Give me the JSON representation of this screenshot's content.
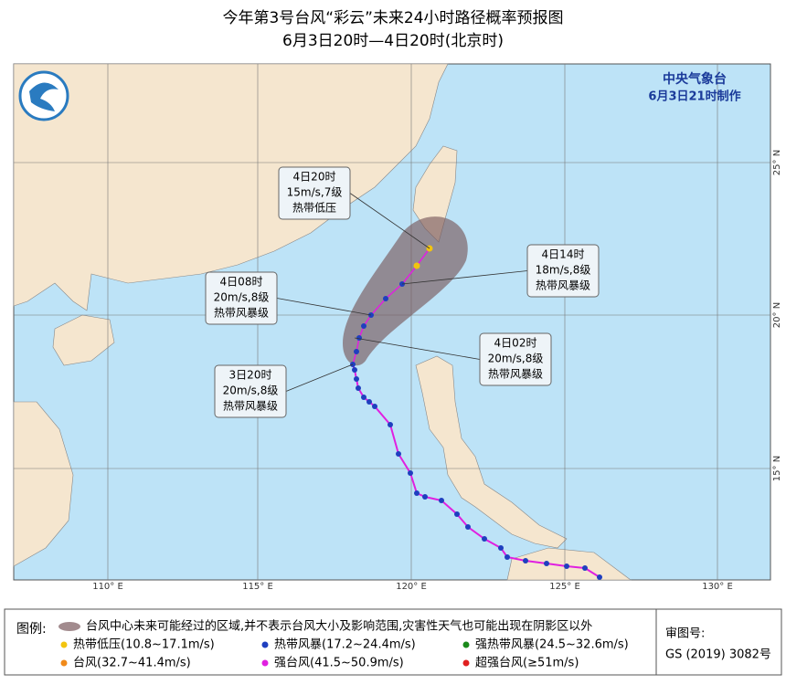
{
  "header": {
    "title": "今年第3号台风“彩云”未来24小时路径概率预报图",
    "subtitle": "6月3日20时—4日20时(北京时)"
  },
  "agency": {
    "name": "中央气象台",
    "issued": "6月3日21时制作"
  },
  "annotations": [
    {
      "time": "4日20时",
      "wind": "15m/s,7级",
      "level": "热带低压"
    },
    {
      "time": "4日14时",
      "wind": "18m/s,8级",
      "level": "热带风暴级"
    },
    {
      "time": "4日08时",
      "wind": "20m/s,8级",
      "level": "热带风暴级"
    },
    {
      "time": "4日02时",
      "wind": "20m/s,8级",
      "level": "热带风暴级"
    },
    {
      "time": "3日20时",
      "wind": "20m/s,8级",
      "level": "热带风暴级"
    }
  ],
  "map": {
    "longitudes": [
      "110° E",
      "115° E",
      "120° E",
      "125° E",
      "130° E"
    ],
    "latitudes": [
      "25° N",
      "20° N",
      "15° N"
    ]
  },
  "legend": {
    "title": "图例:",
    "cone": "台风中心未来可能经过的区域,并不表示台风大小及影响范围,灾害性天气也可能出现在阴影区以外",
    "items": [
      {
        "label": "热带低压(10.8~17.1m/s)",
        "color": "#f2c40f"
      },
      {
        "label": "热带风暴(17.2~24.4m/s)",
        "color": "#1f3fbf"
      },
      {
        "label": "强热带风暴(24.5~32.6m/s)",
        "color": "#1a8a1a"
      },
      {
        "label": "台风(32.7~41.4m/s)",
        "color": "#f08a1a"
      },
      {
        "label": "强台风(41.5~50.9m/s)",
        "color": "#e020e0"
      },
      {
        "label": "超强台风(≥51m/s)",
        "color": "#e02020"
      }
    ]
  },
  "review": {
    "label": "审图号:",
    "number": "GS (2019) 3082号"
  }
}
